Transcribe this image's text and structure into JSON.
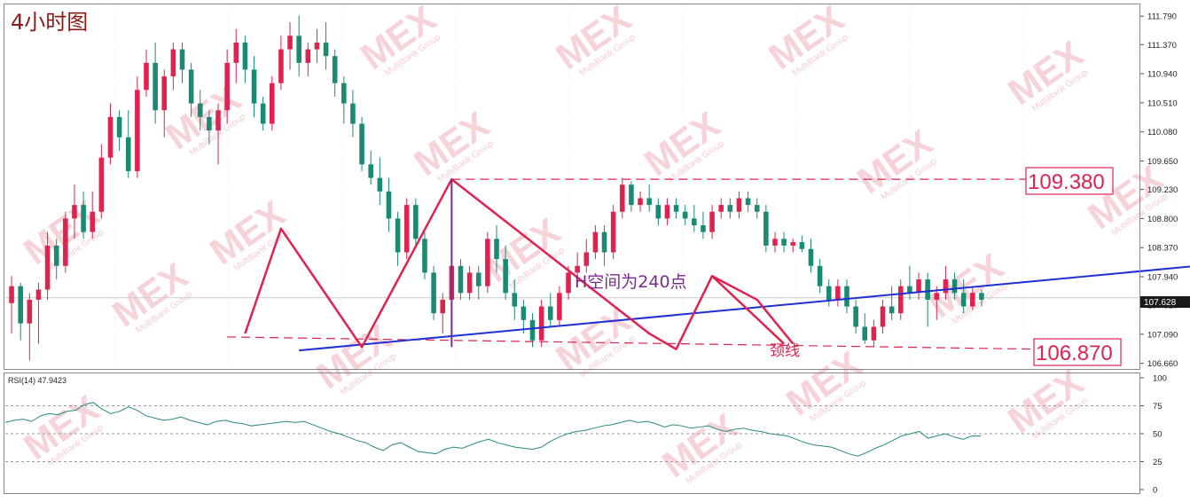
{
  "timeframe_label": "4小时图",
  "colors": {
    "background": "#ffffff",
    "bull": "#e0224e",
    "bear": "#1a8a72",
    "rsi_line": "#2a8a80",
    "trend_line": "#1f2fd6",
    "pattern_line": "#e0224e",
    "height_line": "#7a2c8c",
    "grid_dash": "#aaaaaa",
    "price_tag_bg": "#1a1a1a",
    "watermark": "#f3c5cc"
  },
  "watermark_text": "MEX",
  "watermark_sub": "MultiBank Group",
  "annotations": {
    "height_text": "H空间为240点",
    "neckline_text": "颈线",
    "upper_level": "109.380",
    "lower_level": "106.870"
  },
  "current_price": "107.628",
  "chart_data": [
    {
      "type": "candlestick",
      "title": "4小时图",
      "y_ticks": [
        "111.790",
        "111.370",
        "110.940",
        "110.510",
        "110.080",
        "109.650",
        "109.230",
        "108.800",
        "108.370",
        "107.940",
        "107.520",
        "107.090",
        "106.660"
      ],
      "y_tick_values": [
        111.79,
        111.37,
        110.94,
        110.51,
        110.08,
        109.65,
        109.23,
        108.8,
        108.37,
        107.94,
        107.52,
        107.09,
        106.66
      ],
      "ylim": [
        106.59,
        111.95
      ],
      "current_price": 107.628,
      "horizontal_levels": [
        109.38,
        106.87
      ],
      "candles": [
        {
          "o": 107.55,
          "h": 107.95,
          "l": 107.1,
          "c": 107.8
        },
        {
          "o": 107.8,
          "h": 107.85,
          "l": 107.0,
          "c": 107.25
        },
        {
          "o": 107.25,
          "h": 107.7,
          "l": 106.7,
          "c": 107.6
        },
        {
          "o": 107.6,
          "h": 107.85,
          "l": 106.95,
          "c": 107.75
        },
        {
          "o": 107.75,
          "h": 108.6,
          "l": 107.6,
          "c": 108.4
        },
        {
          "o": 108.4,
          "h": 108.5,
          "l": 107.9,
          "c": 108.1
        },
        {
          "o": 108.1,
          "h": 108.9,
          "l": 108.0,
          "c": 108.8
        },
        {
          "o": 108.8,
          "h": 109.3,
          "l": 108.5,
          "c": 109.0
        },
        {
          "o": 109.0,
          "h": 109.2,
          "l": 108.5,
          "c": 108.6
        },
        {
          "o": 108.6,
          "h": 109.2,
          "l": 108.5,
          "c": 108.9
        },
        {
          "o": 108.9,
          "h": 109.9,
          "l": 108.8,
          "c": 109.7
        },
        {
          "o": 109.7,
          "h": 110.5,
          "l": 109.6,
          "c": 110.3
        },
        {
          "o": 110.3,
          "h": 110.4,
          "l": 109.8,
          "c": 110.0
        },
        {
          "o": 110.0,
          "h": 110.4,
          "l": 109.4,
          "c": 109.5
        },
        {
          "o": 109.5,
          "h": 110.9,
          "l": 109.4,
          "c": 110.7
        },
        {
          "o": 110.7,
          "h": 111.3,
          "l": 110.6,
          "c": 111.1
        },
        {
          "o": 111.1,
          "h": 111.4,
          "l": 110.2,
          "c": 110.4
        },
        {
          "o": 110.4,
          "h": 111.0,
          "l": 110.0,
          "c": 110.9
        },
        {
          "o": 110.9,
          "h": 111.4,
          "l": 110.7,
          "c": 111.3
        },
        {
          "o": 111.3,
          "h": 111.4,
          "l": 110.8,
          "c": 111.0
        },
        {
          "o": 111.0,
          "h": 111.1,
          "l": 110.3,
          "c": 110.5
        },
        {
          "o": 110.5,
          "h": 110.7,
          "l": 110.1,
          "c": 110.3
        },
        {
          "o": 110.3,
          "h": 110.4,
          "l": 109.9,
          "c": 110.1
        },
        {
          "o": 110.1,
          "h": 110.5,
          "l": 109.6,
          "c": 110.4
        },
        {
          "o": 110.4,
          "h": 111.3,
          "l": 110.2,
          "c": 111.1
        },
        {
          "o": 111.1,
          "h": 111.6,
          "l": 110.8,
          "c": 111.4
        },
        {
          "o": 111.4,
          "h": 111.5,
          "l": 110.8,
          "c": 111.0
        },
        {
          "o": 111.0,
          "h": 111.2,
          "l": 110.3,
          "c": 110.5
        },
        {
          "o": 110.5,
          "h": 110.6,
          "l": 110.1,
          "c": 110.2
        },
        {
          "o": 110.2,
          "h": 110.9,
          "l": 110.1,
          "c": 110.8
        },
        {
          "o": 110.8,
          "h": 111.5,
          "l": 110.7,
          "c": 111.3
        },
        {
          "o": 111.3,
          "h": 111.7,
          "l": 111.0,
          "c": 111.5
        },
        {
          "o": 111.5,
          "h": 111.8,
          "l": 110.9,
          "c": 111.1
        },
        {
          "o": 111.1,
          "h": 111.4,
          "l": 110.9,
          "c": 111.3
        },
        {
          "o": 111.3,
          "h": 111.6,
          "l": 111.1,
          "c": 111.4
        },
        {
          "o": 111.4,
          "h": 111.7,
          "l": 111.0,
          "c": 111.2
        },
        {
          "o": 111.2,
          "h": 111.3,
          "l": 110.6,
          "c": 110.8
        },
        {
          "o": 110.8,
          "h": 110.9,
          "l": 110.2,
          "c": 110.5
        },
        {
          "o": 110.5,
          "h": 110.7,
          "l": 110.0,
          "c": 110.2
        },
        {
          "o": 110.2,
          "h": 110.3,
          "l": 109.5,
          "c": 109.6
        },
        {
          "o": 109.6,
          "h": 109.8,
          "l": 109.3,
          "c": 109.4
        },
        {
          "o": 109.4,
          "h": 109.7,
          "l": 109.0,
          "c": 109.2
        },
        {
          "o": 109.2,
          "h": 109.4,
          "l": 108.6,
          "c": 108.8
        },
        {
          "o": 108.8,
          "h": 108.9,
          "l": 108.1,
          "c": 108.3
        },
        {
          "o": 108.3,
          "h": 109.1,
          "l": 108.2,
          "c": 109.0
        },
        {
          "o": 109.0,
          "h": 109.1,
          "l": 108.4,
          "c": 108.5
        },
        {
          "o": 108.5,
          "h": 108.6,
          "l": 107.9,
          "c": 108.0
        },
        {
          "o": 108.0,
          "h": 108.1,
          "l": 107.3,
          "c": 107.4
        },
        {
          "o": 107.4,
          "h": 107.7,
          "l": 107.1,
          "c": 107.6
        },
        {
          "o": 107.6,
          "h": 108.2,
          "l": 107.5,
          "c": 108.1
        },
        {
          "o": 108.1,
          "h": 108.2,
          "l": 107.6,
          "c": 107.7
        },
        {
          "o": 107.7,
          "h": 108.1,
          "l": 107.6,
          "c": 108.0
        },
        {
          "o": 108.0,
          "h": 108.1,
          "l": 107.6,
          "c": 107.8
        },
        {
          "o": 107.8,
          "h": 108.6,
          "l": 107.7,
          "c": 108.5
        },
        {
          "o": 108.5,
          "h": 108.7,
          "l": 108.0,
          "c": 108.2
        },
        {
          "o": 108.2,
          "h": 108.4,
          "l": 107.6,
          "c": 107.7
        },
        {
          "o": 107.7,
          "h": 107.9,
          "l": 107.3,
          "c": 107.5
        },
        {
          "o": 107.5,
          "h": 107.6,
          "l": 107.1,
          "c": 107.3
        },
        {
          "o": 107.3,
          "h": 107.4,
          "l": 106.9,
          "c": 107.0
        },
        {
          "o": 107.0,
          "h": 107.6,
          "l": 106.9,
          "c": 107.5
        },
        {
          "o": 107.5,
          "h": 107.7,
          "l": 107.2,
          "c": 107.3
        },
        {
          "o": 107.3,
          "h": 107.8,
          "l": 107.2,
          "c": 107.7
        },
        {
          "o": 107.7,
          "h": 108.1,
          "l": 107.6,
          "c": 108.0
        },
        {
          "o": 108.0,
          "h": 108.3,
          "l": 107.8,
          "c": 108.1
        },
        {
          "o": 108.1,
          "h": 108.5,
          "l": 108.0,
          "c": 108.3
        },
        {
          "o": 108.3,
          "h": 108.7,
          "l": 108.2,
          "c": 108.6
        },
        {
          "o": 108.6,
          "h": 108.7,
          "l": 108.1,
          "c": 108.3
        },
        {
          "o": 108.3,
          "h": 109.0,
          "l": 108.2,
          "c": 108.9
        },
        {
          "o": 108.9,
          "h": 109.4,
          "l": 108.8,
          "c": 109.3
        },
        {
          "o": 109.3,
          "h": 109.35,
          "l": 108.9,
          "c": 109.0
        },
        {
          "o": 109.0,
          "h": 109.2,
          "l": 108.9,
          "c": 109.1
        },
        {
          "o": 109.1,
          "h": 109.3,
          "l": 108.9,
          "c": 109.0
        },
        {
          "o": 109.0,
          "h": 109.1,
          "l": 108.7,
          "c": 108.8
        },
        {
          "o": 108.8,
          "h": 109.1,
          "l": 108.7,
          "c": 109.0
        },
        {
          "o": 109.0,
          "h": 109.1,
          "l": 108.8,
          "c": 108.9
        },
        {
          "o": 108.9,
          "h": 109.0,
          "l": 108.7,
          "c": 108.8
        },
        {
          "o": 108.8,
          "h": 109.0,
          "l": 108.6,
          "c": 108.7
        },
        {
          "o": 108.7,
          "h": 108.9,
          "l": 108.5,
          "c": 108.6
        },
        {
          "o": 108.6,
          "h": 109.0,
          "l": 108.5,
          "c": 108.9
        },
        {
          "o": 108.9,
          "h": 109.1,
          "l": 108.8,
          "c": 109.0
        },
        {
          "o": 109.0,
          "h": 109.1,
          "l": 108.8,
          "c": 108.9
        },
        {
          "o": 108.9,
          "h": 109.2,
          "l": 108.8,
          "c": 109.1
        },
        {
          "o": 109.1,
          "h": 109.2,
          "l": 108.9,
          "c": 109.0
        },
        {
          "o": 109.0,
          "h": 109.1,
          "l": 108.8,
          "c": 108.9
        },
        {
          "o": 108.9,
          "h": 109.0,
          "l": 108.3,
          "c": 108.4
        },
        {
          "o": 108.4,
          "h": 108.6,
          "l": 108.3,
          "c": 108.5
        },
        {
          "o": 108.5,
          "h": 108.6,
          "l": 108.3,
          "c": 108.4
        },
        {
          "o": 108.4,
          "h": 108.5,
          "l": 108.3,
          "c": 108.45
        },
        {
          "o": 108.45,
          "h": 108.55,
          "l": 108.3,
          "c": 108.35
        },
        {
          "o": 108.35,
          "h": 108.5,
          "l": 108.0,
          "c": 108.1
        },
        {
          "o": 108.1,
          "h": 108.2,
          "l": 107.7,
          "c": 107.8
        },
        {
          "o": 107.8,
          "h": 107.9,
          "l": 107.5,
          "c": 107.6
        },
        {
          "o": 107.6,
          "h": 107.9,
          "l": 107.5,
          "c": 107.8
        },
        {
          "o": 107.8,
          "h": 107.9,
          "l": 107.4,
          "c": 107.5
        },
        {
          "o": 107.5,
          "h": 107.6,
          "l": 107.1,
          "c": 107.2
        },
        {
          "o": 107.2,
          "h": 107.4,
          "l": 106.95,
          "c": 107.0
        },
        {
          "o": 107.0,
          "h": 107.3,
          "l": 106.9,
          "c": 107.2
        },
        {
          "o": 107.2,
          "h": 107.6,
          "l": 107.1,
          "c": 107.5
        },
        {
          "o": 107.5,
          "h": 107.8,
          "l": 107.3,
          "c": 107.4
        },
        {
          "o": 107.4,
          "h": 107.9,
          "l": 107.3,
          "c": 107.8
        },
        {
          "o": 107.8,
          "h": 108.1,
          "l": 107.6,
          "c": 107.7
        },
        {
          "o": 107.7,
          "h": 108.0,
          "l": 107.6,
          "c": 107.9
        },
        {
          "o": 107.9,
          "h": 108.0,
          "l": 107.2,
          "c": 107.6
        },
        {
          "o": 107.6,
          "h": 107.8,
          "l": 107.3,
          "c": 107.7
        },
        {
          "o": 107.7,
          "h": 108.1,
          "l": 107.6,
          "c": 107.9
        },
        {
          "o": 107.9,
          "h": 108.0,
          "l": 107.6,
          "c": 107.7
        },
        {
          "o": 107.7,
          "h": 107.9,
          "l": 107.4,
          "c": 107.5
        },
        {
          "o": 107.5,
          "h": 107.8,
          "l": 107.45,
          "c": 107.7
        },
        {
          "o": 107.7,
          "h": 107.75,
          "l": 107.5,
          "c": 107.6
        }
      ],
      "trend_line": {
        "points": [
          [
            32,
            106.85
          ],
          [
            148,
            108.3
          ]
        ]
      },
      "pattern_lines": [
        [
          [
            26,
            107.1
          ],
          [
            30,
            108.65
          ],
          [
            39,
            106.9
          ],
          [
            49,
            109.38
          ],
          [
            71,
            107.1
          ],
          [
            74,
            106.87
          ],
          [
            78,
            107.95
          ],
          [
            86,
            106.95
          ]
        ],
        [
          [
            78,
            107.95
          ],
          [
            83,
            107.6
          ],
          [
            87,
            106.95
          ]
        ]
      ],
      "height_marker": {
        "at": 49,
        "from": 106.9,
        "to": 109.38
      },
      "neckline": {
        "points": [
          [
            24,
            107.05
          ],
          [
            110,
            106.87
          ]
        ]
      }
    },
    {
      "type": "line",
      "title": "RSI(14) 47.9423",
      "y_ticks": [
        "100",
        "75",
        "50",
        "25",
        "0"
      ],
      "y_tick_values": [
        100,
        75,
        50,
        25,
        0
      ],
      "levels": [
        75,
        50,
        25
      ],
      "ylim": [
        0,
        100
      ],
      "series": [
        {
          "values": [
            60,
            62,
            63,
            61,
            66,
            68,
            67,
            70,
            71,
            76,
            78,
            72,
            68,
            70,
            74,
            71,
            66,
            64,
            62,
            63,
            65,
            62,
            60,
            58,
            61,
            62,
            60,
            59,
            57,
            58,
            59,
            60,
            61,
            60,
            61,
            58,
            55,
            52,
            50,
            47,
            44,
            42,
            38,
            35,
            40,
            42,
            38,
            34,
            33,
            32,
            36,
            38,
            37,
            40,
            43,
            45,
            42,
            40,
            38,
            37,
            36,
            38,
            43,
            47,
            50,
            52,
            53,
            55,
            57,
            58,
            60,
            62,
            60,
            61,
            59,
            56,
            58,
            57,
            55,
            56,
            57,
            54,
            52,
            54,
            55,
            53,
            52,
            50,
            49,
            48,
            45,
            42,
            40,
            39,
            38,
            35,
            32,
            30,
            33,
            37,
            40,
            44,
            48,
            50,
            52,
            46,
            48,
            50,
            47,
            45,
            48,
            47.9
          ]
        }
      ]
    }
  ]
}
